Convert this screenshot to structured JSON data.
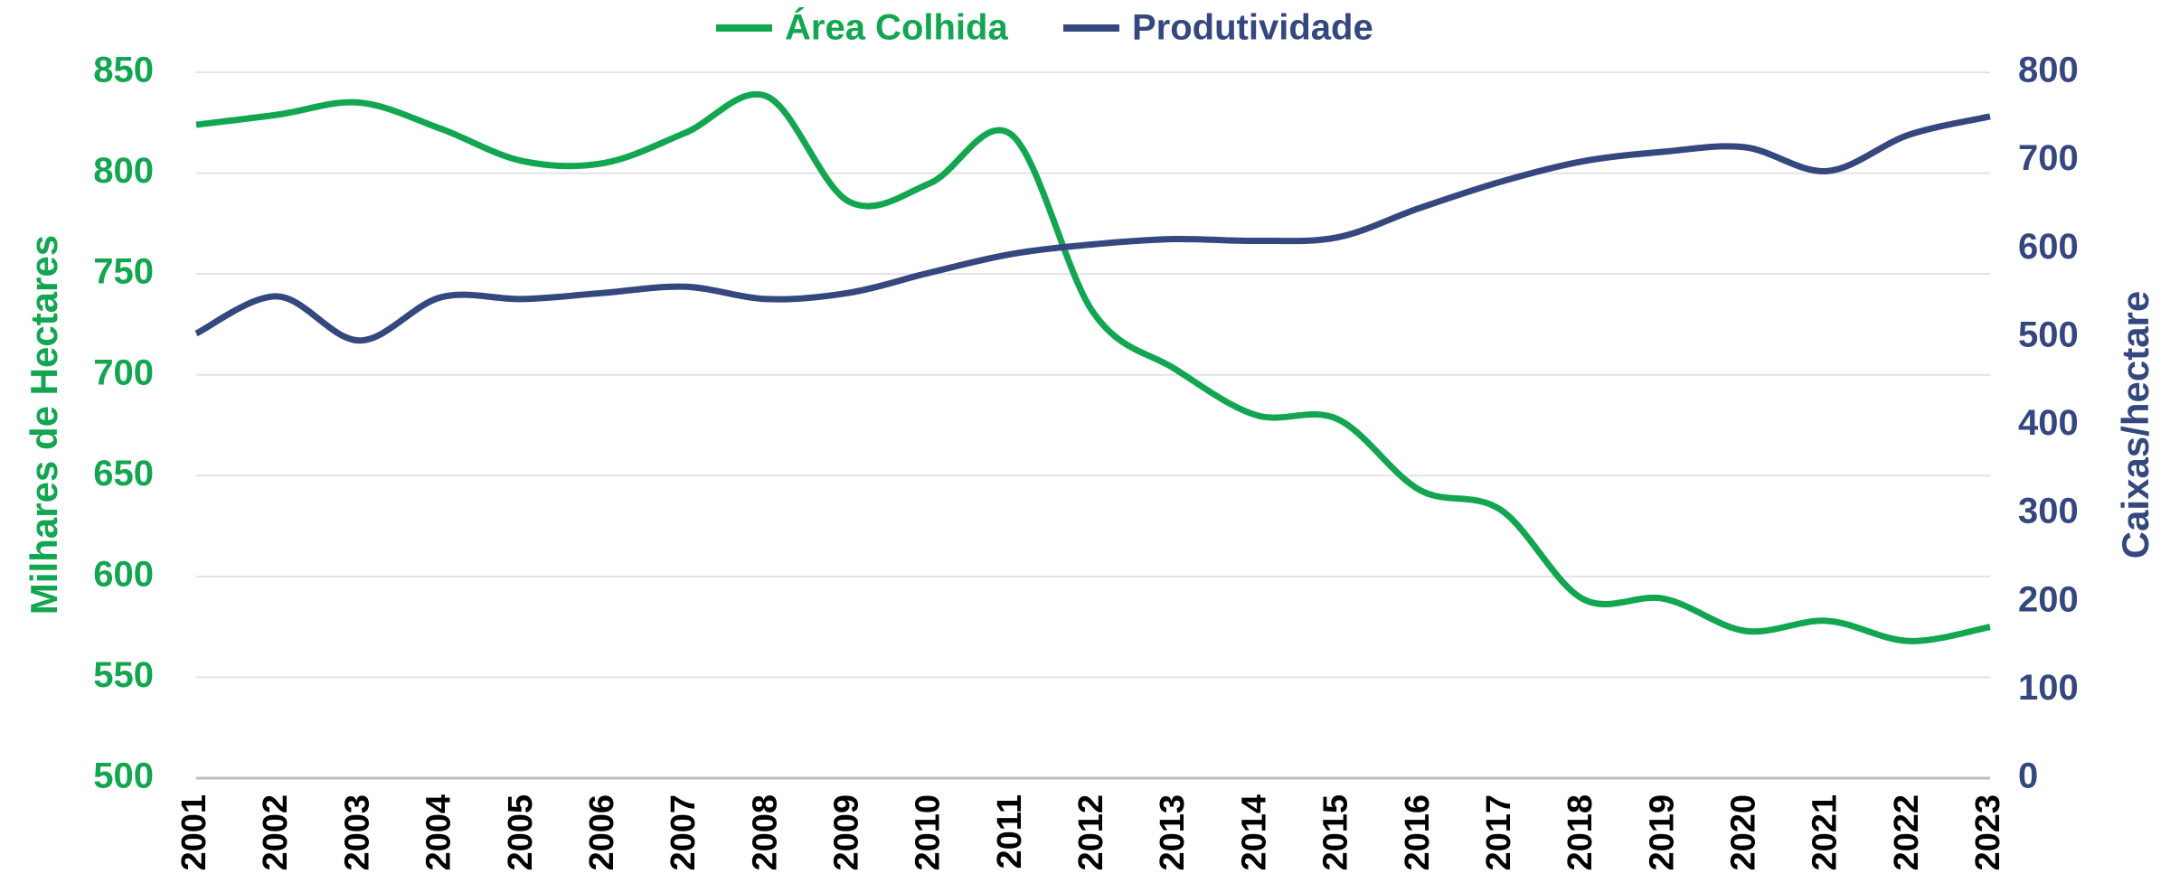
{
  "chart_data": {
    "type": "line",
    "categories": [
      "2001",
      "2002",
      "2003",
      "2004",
      "2005",
      "2006",
      "2007",
      "2008",
      "2009",
      "2010",
      "2011",
      "2012",
      "2013",
      "2014",
      "2015",
      "2016",
      "2017",
      "2018",
      "2019",
      "2020",
      "2021",
      "2022",
      "2023"
    ],
    "series": [
      {
        "name": "Área Colhida",
        "color": "#12a650",
        "axis": "y",
        "values": [
          824,
          829,
          835,
          822,
          806,
          805,
          820,
          838,
          786,
          795,
          819,
          731,
          703,
          680,
          678,
          643,
          633,
          589,
          589,
          573,
          578,
          568,
          575
        ]
      },
      {
        "name": "Produtividade",
        "color": "#34477f",
        "axis": "y2",
        "values": [
          504,
          546,
          496,
          545,
          543,
          550,
          557,
          543,
          550,
          573,
          594,
          605,
          611,
          609,
          613,
          646,
          676,
          699,
          710,
          715,
          688,
          729,
          750
        ]
      }
    ],
    "ylabel": "Milhares de Hectares",
    "y2label": "Caixas/hectare",
    "ylim": [
      500,
      850
    ],
    "yticks": [
      500,
      550,
      600,
      650,
      700,
      750,
      800,
      850
    ],
    "y2lim": [
      0,
      800
    ],
    "y2ticks": [
      0,
      100,
      200,
      300,
      400,
      500,
      600,
      700,
      800
    ],
    "grid": true,
    "legend": "top"
  }
}
